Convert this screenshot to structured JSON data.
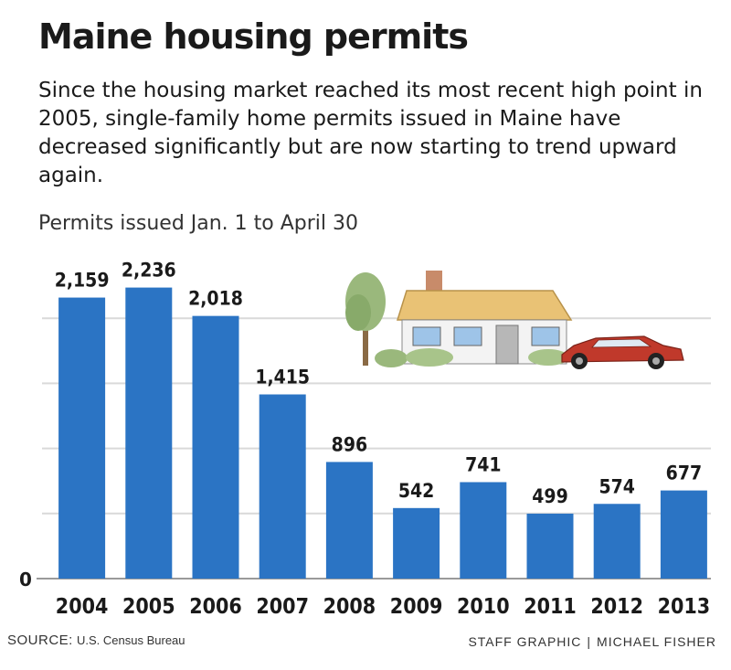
{
  "header": {
    "title": "Maine housing permits",
    "subtitle": "Since the housing market reached its most recent high point in 2005, single-family home permits issued in Maine have decreased significantly but are now starting to trend upward again.",
    "units_label": "Permits issued Jan. 1 to April 30"
  },
  "chart_data": {
    "type": "bar",
    "categories": [
      "2004",
      "2005",
      "2006",
      "2007",
      "2008",
      "2009",
      "2010",
      "2011",
      "2012",
      "2013"
    ],
    "values": [
      2159,
      2236,
      2018,
      1415,
      896,
      542,
      741,
      499,
      574,
      677
    ],
    "value_labels": [
      "2,159",
      "2,236",
      "2,018",
      "1,415",
      "896",
      "542",
      "741",
      "499",
      "574",
      "677"
    ],
    "y_tick_labels": [
      "0"
    ],
    "ylim": [
      0,
      2500
    ],
    "grid": true,
    "bar_color": "#2b74c4",
    "grid_color": "#d9d9d9"
  },
  "footer": {
    "source_label": "SOURCE:",
    "source_text": "U.S. Census Bureau",
    "credit_left": "STAFF GRAPHIC",
    "credit_sep": "|",
    "credit_right": "MICHAEL FISHER"
  }
}
